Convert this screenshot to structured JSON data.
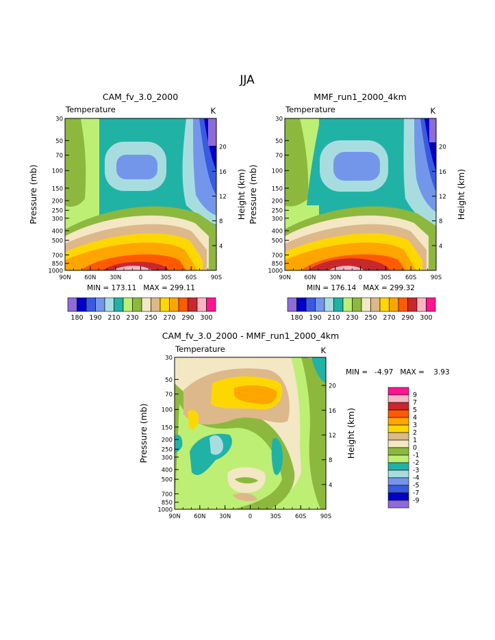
{
  "figure_title": "JJA",
  "chart_data": [
    {
      "type": "heatmap",
      "title": "CAM_fv_3.0_2000",
      "subtitle_left": "Temperature",
      "subtitle_right": "K",
      "ylabel": "Pressure (mb)",
      "ylabel_right": "Height (km)",
      "x_ticks": [
        "90N",
        "60N",
        "30N",
        "0",
        "30S",
        "60S",
        "90S"
      ],
      "y_ticks": [
        "30",
        "50",
        "70",
        "100",
        "150",
        "200",
        "250",
        "300",
        "400",
        "500",
        "700",
        "850",
        "1000"
      ],
      "y_ticks_right": [
        "4",
        "8",
        "12",
        "16",
        "20"
      ],
      "stats": "MIN = 173.11   MAX = 299.11",
      "contour_levels": [
        180,
        185,
        190,
        195,
        200,
        205,
        210,
        220,
        230,
        240,
        250,
        260,
        270,
        280,
        290,
        295,
        300
      ],
      "colorbar_labels": [
        "180",
        "190",
        "210",
        "230",
        "250",
        "270",
        "290",
        "300"
      ]
    },
    {
      "type": "heatmap",
      "title": "MMF_run1_2000_4km",
      "subtitle_left": "Temperature",
      "subtitle_right": "K",
      "ylabel": "Pressure (mb)",
      "ylabel_right": "Height (km)",
      "x_ticks": [
        "90N",
        "60N",
        "30N",
        "0",
        "30S",
        "60S",
        "90S"
      ],
      "y_ticks": [
        "30",
        "50",
        "70",
        "100",
        "150",
        "200",
        "250",
        "300",
        "400",
        "500",
        "700",
        "850",
        "1000"
      ],
      "y_ticks_right": [
        "4",
        "8",
        "12",
        "16",
        "20"
      ],
      "stats": "MIN = 176.14   MAX = 299.32",
      "contour_levels": [
        180,
        185,
        190,
        195,
        200,
        205,
        210,
        220,
        230,
        240,
        250,
        260,
        270,
        280,
        290,
        295,
        300
      ],
      "colorbar_labels": [
        "180",
        "190",
        "210",
        "230",
        "250",
        "270",
        "290",
        "300"
      ]
    },
    {
      "type": "heatmap",
      "title": "CAM_fv_3.0_2000 - MMF_run1_2000_4km",
      "subtitle_left": "Temperature",
      "subtitle_right": "K",
      "ylabel": "Pressure (mb)",
      "ylabel_right": "Height (km)",
      "x_ticks": [
        "90N",
        "60N",
        "30N",
        "0",
        "30S",
        "60S",
        "90S"
      ],
      "y_ticks": [
        "30",
        "50",
        "70",
        "100",
        "150",
        "200",
        "250",
        "300",
        "400",
        "500",
        "700",
        "850",
        "1000"
      ],
      "y_ticks_right": [
        "4",
        "8",
        "12",
        "16",
        "20"
      ],
      "stats": "MIN =   -4.97   MAX =    3.93",
      "contour_levels": [
        9,
        7,
        5,
        4,
        3,
        2,
        1,
        0,
        -1,
        -2,
        -3,
        -4,
        -5,
        -7,
        -9
      ],
      "colorbar_labels": [
        "9",
        "7",
        "5",
        "4",
        "3",
        "2",
        "1",
        "0",
        "-1",
        "-2",
        "-3",
        "-4",
        "-5",
        "-7",
        "-9"
      ]
    }
  ],
  "colors": {
    "abs_palette": [
      "#8E6BD9",
      "#0000C8",
      "#3A5BE0",
      "#7496EA",
      "#A8DDE0",
      "#21B2A6",
      "#BDEF74",
      "#8DB83E",
      "#F3E7C4",
      "#DDB88B",
      "#FFD700",
      "#FFA500",
      "#FF5A00",
      "#C8282D",
      "#F9B6C2",
      "#FF1493"
    ],
    "diff_palette": [
      "#FF1493",
      "#F9B6C2",
      "#C8282D",
      "#FF5A00",
      "#FFA500",
      "#FFD700",
      "#DDB88B",
      "#F3E7C4",
      "#8DB83E",
      "#BDEF74",
      "#21B2A6",
      "#A8DDE0",
      "#7496EA",
      "#3A5BE0",
      "#0000C8",
      "#8E6BD9"
    ]
  }
}
